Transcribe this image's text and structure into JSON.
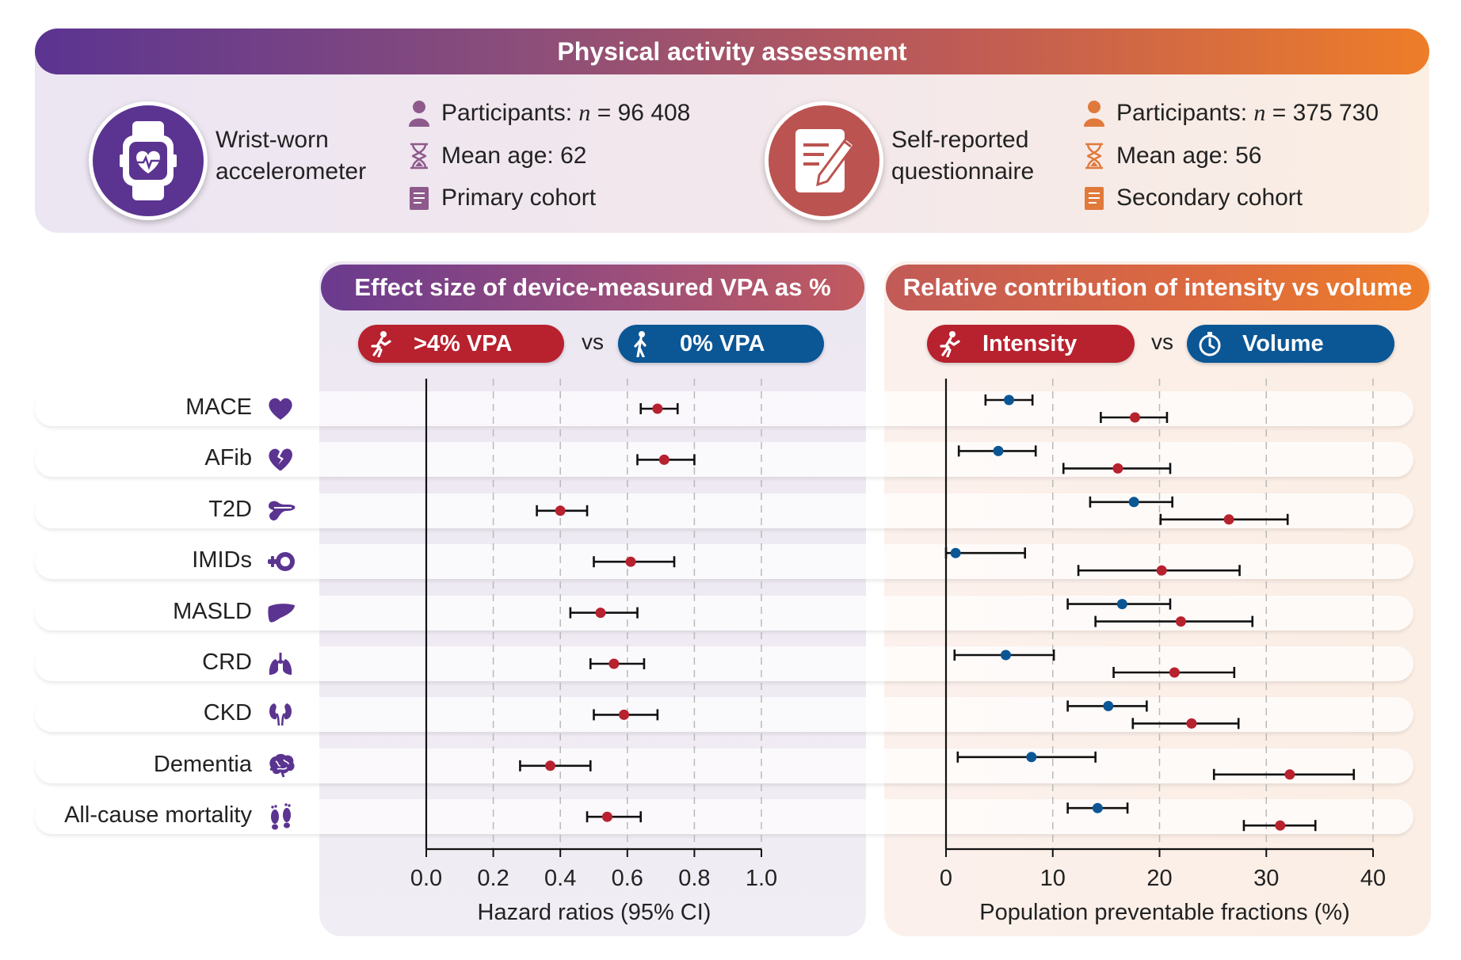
{
  "header": {
    "title": "Physical activity assessment"
  },
  "methods": [
    {
      "name_line1": "Wrist-worn",
      "name_line2": "accelerometer",
      "icon": "smartwatch-icon",
      "color": "#5b3491",
      "participants_label": "Participants: ",
      "participants_n": "n",
      "participants_value": " = 96 408",
      "age": "Mean age: 62",
      "cohort": "Primary cohort"
    },
    {
      "name_line1": "Self-reported",
      "name_line2": "questionnaire",
      "icon": "questionnaire-icon",
      "color": "#c0554e",
      "participants_label": "Participants: ",
      "participants_n": "n",
      "participants_value": " = 375 730",
      "age": "Mean age: 56",
      "cohort": "Secondary cohort"
    }
  ],
  "left_panel": {
    "title": "Effect size of device-measured VPA as %",
    "pill_a": ">4% VPA",
    "pill_b": "0% VPA",
    "vs": "vs",
    "xlabel": "Hazard ratios (95% CI)"
  },
  "right_panel": {
    "title": "Relative contribution of intensity vs volume",
    "pill_a": "Intensity",
    "pill_b": "Volume",
    "vs": "vs",
    "xlabel": "Population preventable fractions (%)"
  },
  "outcomes": [
    {
      "label": "MACE",
      "icon": "heart-icon"
    },
    {
      "label": "AFib",
      "icon": "broken-heart-icon"
    },
    {
      "label": "T2D",
      "icon": "pancreas-icon"
    },
    {
      "label": "IMIDs",
      "icon": "immune-icon"
    },
    {
      "label": "MASLD",
      "icon": "liver-icon"
    },
    {
      "label": "CRD",
      "icon": "lungs-icon"
    },
    {
      "label": "CKD",
      "icon": "kidneys-icon"
    },
    {
      "label": "Dementia",
      "icon": "brain-icon"
    },
    {
      "label": "All-cause mortality",
      "icon": "footprints-icon"
    }
  ],
  "colors": {
    "red": "#b8212e",
    "blue": "#0b5695",
    "purple": "#5b3491",
    "orange": "#ee7d28"
  },
  "chart_data": [
    {
      "type": "scatter",
      "subtype": "forest",
      "title": "Effect size of device-measured VPA as %",
      "xlabel": "Hazard ratios (95% CI)",
      "xlim": [
        0,
        1.0
      ],
      "xticks": [
        "0.0",
        "0.2",
        "0.4",
        "0.6",
        "0.8",
        "1.0"
      ],
      "tick_values": [
        0,
        0.2,
        0.4,
        0.6,
        0.8,
        1.0
      ],
      "categories": [
        "MACE",
        "AFib",
        "T2D",
        "IMIDs",
        "MASLD",
        "CRD",
        "CKD",
        "Dementia",
        "All-cause mortality"
      ],
      "series": [
        {
          "name": ">4% VPA vs 0% VPA",
          "color": "#b8212e",
          "values": [
            0.69,
            0.71,
            0.4,
            0.61,
            0.52,
            0.56,
            0.59,
            0.37,
            0.54
          ],
          "lower": [
            0.64,
            0.63,
            0.33,
            0.5,
            0.43,
            0.49,
            0.5,
            0.28,
            0.48
          ],
          "upper": [
            0.75,
            0.8,
            0.48,
            0.74,
            0.63,
            0.65,
            0.69,
            0.49,
            0.64
          ]
        }
      ]
    },
    {
      "type": "scatter",
      "subtype": "forest",
      "title": "Relative contribution of intensity vs volume",
      "xlabel": "Population preventable fractions (%)",
      "xlim": [
        0,
        40
      ],
      "xticks": [
        "0",
        "10",
        "20",
        "30",
        "40"
      ],
      "tick_values": [
        0,
        10,
        20,
        30,
        40
      ],
      "categories": [
        "MACE",
        "AFib",
        "T2D",
        "IMIDs",
        "MASLD",
        "CRD",
        "CKD",
        "Dementia",
        "All-cause mortality"
      ],
      "series": [
        {
          "name": "Volume",
          "color": "#0b5695",
          "values": [
            5.9,
            4.9,
            17.6,
            0.9,
            16.5,
            5.6,
            15.2,
            8.0,
            14.2
          ],
          "lower": [
            3.7,
            1.2,
            13.5,
            0.0,
            11.4,
            0.8,
            11.4,
            1.1,
            11.4
          ],
          "upper": [
            8.1,
            8.4,
            21.2,
            7.4,
            21.0,
            10.1,
            18.8,
            14.0,
            17.0
          ]
        },
        {
          "name": "Intensity",
          "color": "#b8212e",
          "values": [
            17.7,
            16.1,
            26.5,
            20.2,
            22.0,
            21.4,
            23.0,
            32.2,
            31.3
          ],
          "lower": [
            14.5,
            11.0,
            20.1,
            12.4,
            14.0,
            15.7,
            17.5,
            25.1,
            27.9
          ],
          "upper": [
            20.7,
            21.0,
            32.0,
            27.5,
            28.7,
            27.0,
            27.4,
            38.2,
            34.6
          ]
        }
      ]
    }
  ]
}
